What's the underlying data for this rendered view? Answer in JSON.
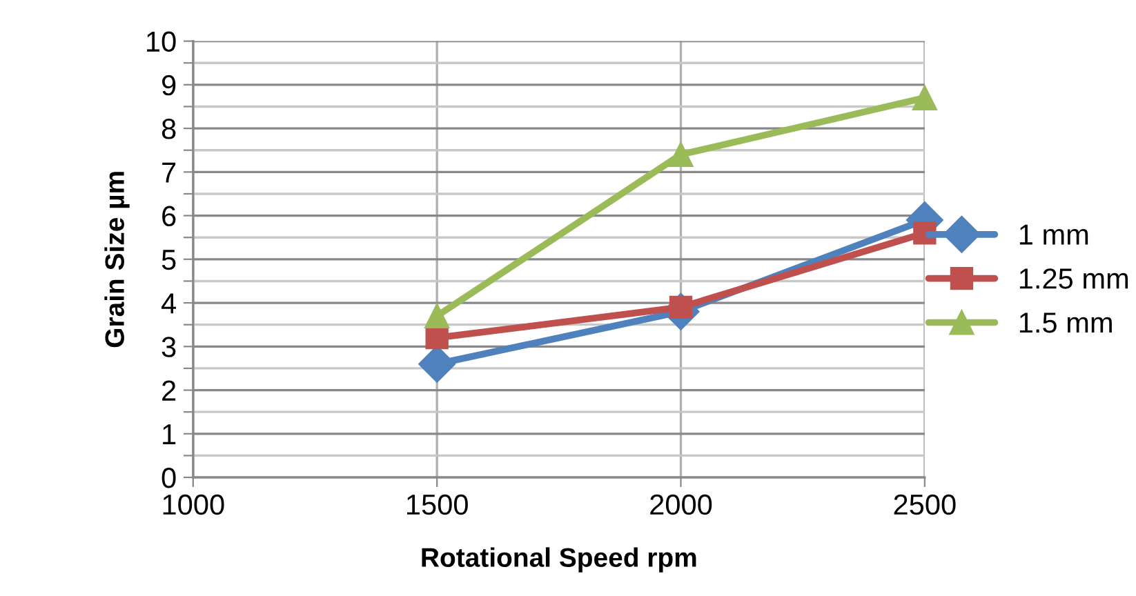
{
  "chart_data": {
    "type": "line",
    "xlabel": "Rotational Speed rpm",
    "ylabel": "Grain Size µm",
    "x": [
      1500,
      2000,
      2500
    ],
    "series": [
      {
        "name": "1 mm",
        "color": "#4f81bd",
        "values": [
          2.6,
          3.8,
          5.9
        ],
        "marker": "diamond"
      },
      {
        "name": "1.25 mm",
        "color": "#c0504d",
        "values": [
          3.2,
          3.9,
          5.6
        ],
        "marker": "square"
      },
      {
        "name": "1.5 mm",
        "color": "#9bbb59",
        "values": [
          3.7,
          7.4,
          8.7
        ],
        "marker": "triangle"
      }
    ],
    "xlim": [
      1000,
      2500
    ],
    "xticks": [
      1000,
      1500,
      2000,
      2500
    ],
    "ylim": [
      0,
      10
    ],
    "yticks": [
      0,
      {
        "value": 0.5,
        "label": null
      },
      1,
      {
        "value": 1.5,
        "label": null
      },
      2,
      {
        "value": 2.5,
        "label": null
      },
      3,
      {
        "value": 3.5,
        "label": null
      },
      4,
      {
        "value": 4.5,
        "label": null
      },
      5,
      {
        "value": 5.5,
        "label": null
      },
      6,
      {
        "value": 6.5,
        "label": null
      },
      7,
      {
        "value": 7.5,
        "label": null
      },
      8,
      {
        "value": 8.5,
        "label": null
      },
      9,
      {
        "value": 9.5,
        "label": null
      },
      10
    ],
    "grid": true,
    "legend": "right",
    "line_style": "solid"
  }
}
